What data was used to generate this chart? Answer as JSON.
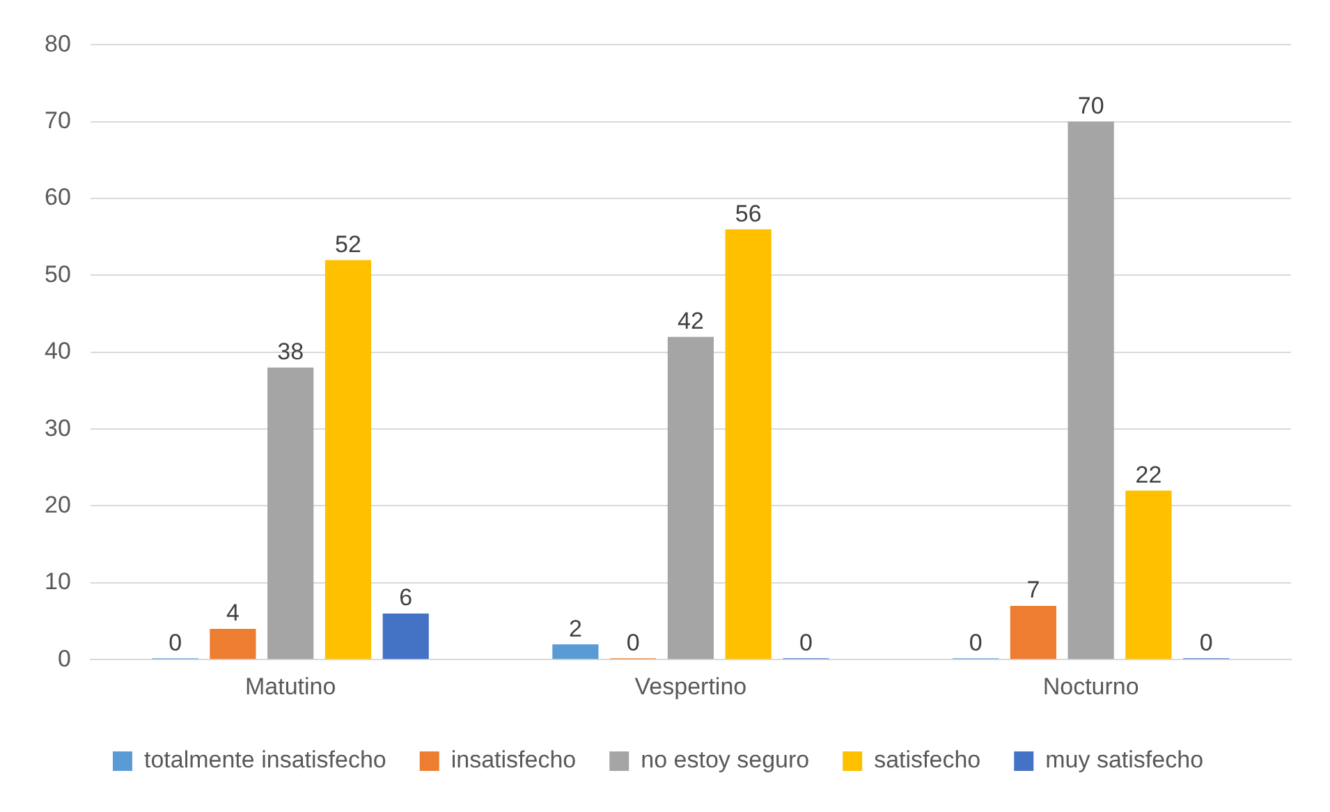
{
  "chart_data": {
    "type": "bar",
    "categories": [
      "Matutino",
      "Vespertino",
      "Nocturno"
    ],
    "series": [
      {
        "name": "totalmente insatisfecho",
        "color": "#5b9bd5",
        "values": [
          0,
          2,
          0
        ]
      },
      {
        "name": "insatisfecho",
        "color": "#ed7d31",
        "values": [
          4,
          0,
          7
        ]
      },
      {
        "name": "no estoy seguro",
        "color": "#a5a5a5",
        "values": [
          38,
          42,
          70
        ]
      },
      {
        "name": "satisfecho",
        "color": "#ffc000",
        "values": [
          52,
          56,
          22
        ]
      },
      {
        "name": "muy satisfecho",
        "color": "#4472c4",
        "values": [
          6,
          0,
          0
        ]
      }
    ],
    "ylim": [
      0,
      80
    ],
    "yticks": [
      0,
      10,
      20,
      30,
      40,
      50,
      60,
      70,
      80
    ],
    "grid": "y",
    "legend": "bottom",
    "data_labels": true
  }
}
